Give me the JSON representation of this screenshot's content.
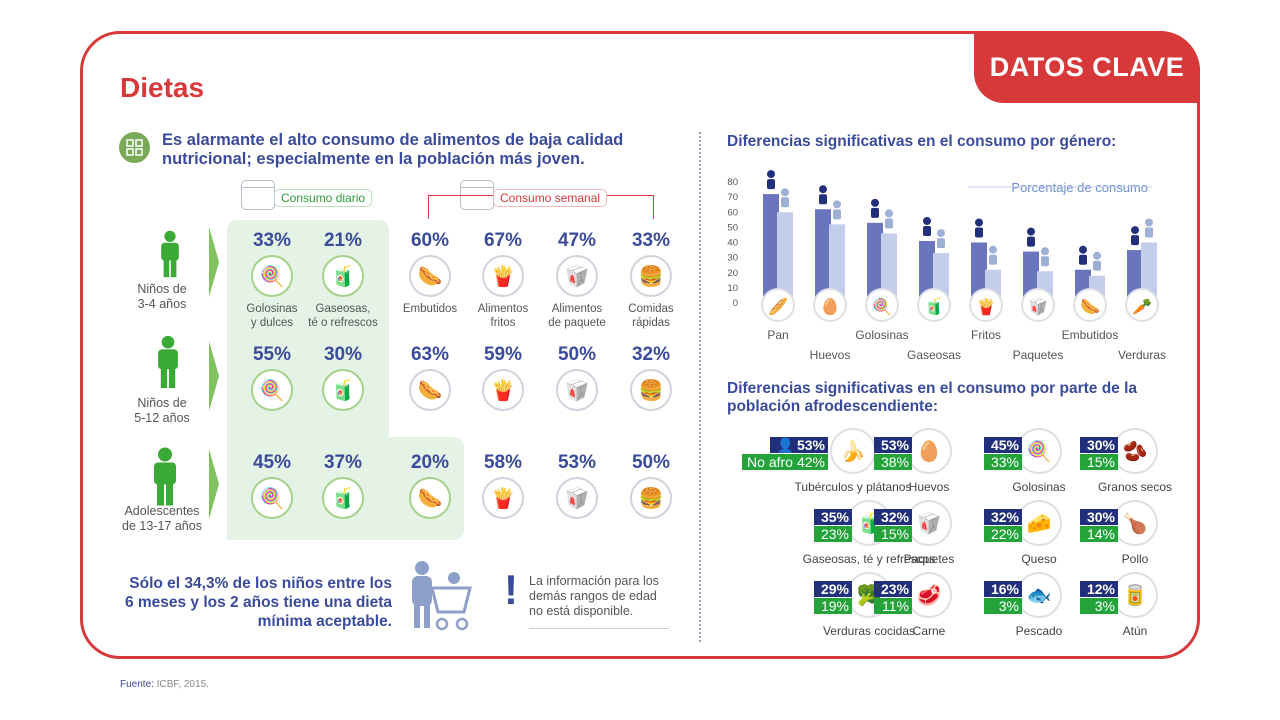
{
  "header": {
    "title": "Dietas",
    "tab": "DATOS CLAVE"
  },
  "intro": "Es alarmante el alto consumo de alimentos de baja calidad nutricional; especialmente en la población más joven.",
  "freq": {
    "daily": "Consumo diario",
    "weekly": "Consumo semanal"
  },
  "groups": [
    {
      "label": "Niños de\n3-4 años",
      "values": [
        "33%",
        "21%",
        "60%",
        "67%",
        "47%",
        "33%"
      ]
    },
    {
      "label": "Niños de\n5-12 años",
      "values": [
        "55%",
        "30%",
        "63%",
        "59%",
        "50%",
        "32%"
      ]
    },
    {
      "label": "Adolescentes\nde 13-17 años",
      "values": [
        "45%",
        "37%",
        "20%",
        "58%",
        "53%",
        "50%"
      ]
    }
  ],
  "foods": [
    {
      "label": "Golosinas\ny dulces",
      "icon": "lollipop-icon",
      "glyph": "🍭"
    },
    {
      "label": "Gaseosas,\nté o refrescos",
      "icon": "bottle-icon",
      "glyph": "🧃"
    },
    {
      "label": "Embutidos",
      "icon": "sausage-icon",
      "glyph": "🌭"
    },
    {
      "label": "Alimentos\nfritos",
      "icon": "fries-icon",
      "glyph": "🍟"
    },
    {
      "label": "Alimentos\nde paquete",
      "icon": "package-icon",
      "glyph": "🥡"
    },
    {
      "label": "Comidas\nrápidas",
      "icon": "burger-icon",
      "glyph": "🍔"
    }
  ],
  "summary": "Sólo el 34,3% de los niños entre los 6 meses y los 2 años tiene una dieta mínima aceptable.",
  "note": "La información para los demás rangos de edad no está disponible.",
  "gender": {
    "title": "Diferencias significativas en el consumo por género:",
    "legend": "Porcentaje de consumo"
  },
  "chart_data": {
    "type": "bar",
    "title": "Diferencias significativas en el consumo por género:",
    "ylabel": "Porcentaje de consumo",
    "ylim": [
      0,
      80
    ],
    "yticks": [
      "0",
      "10",
      "20",
      "30",
      "40",
      "50",
      "60",
      "70",
      "80"
    ],
    "categories": [
      "Pan",
      "Huevos",
      "Golosinas",
      "Gaseosas",
      "Fritos",
      "Paquetes",
      "Embutidos",
      "Verduras"
    ],
    "icons": [
      "🥖",
      "🥚",
      "🍭",
      "🧃",
      "🍟",
      "🥡",
      "🌭",
      "🥕"
    ],
    "series": [
      {
        "values": [
          72,
          62,
          53,
          41,
          40,
          34,
          22,
          35
        ],
        "color": "#6b75be"
      },
      {
        "values": [
          60,
          52,
          46,
          33,
          22,
          21,
          18,
          40
        ],
        "color": "#c4ceec"
      }
    ],
    "grid": false,
    "legend": "top-right"
  },
  "afro": {
    "title": "Diferencias significativas en el consumo por parte de la población afrodescendiente:",
    "legend_afro_icon": "person-icon",
    "legend_noafro": "No afro",
    "items": [
      {
        "name": "Tubérculos y plátanos",
        "afro": "53%",
        "noafro": "42%",
        "glyph": "🍌"
      },
      {
        "name": "Huevos",
        "afro": "53%",
        "noafro": "38%",
        "glyph": "🥚"
      },
      {
        "name": "Golosinas",
        "afro": "45%",
        "noafro": "33%",
        "glyph": "🍭"
      },
      {
        "name": "Granos secos",
        "afro": "30%",
        "noafro": "15%",
        "glyph": "🫘"
      },
      {
        "name": "Gaseosas, té y refrescos",
        "afro": "35%",
        "noafro": "23%",
        "glyph": "🧃"
      },
      {
        "name": "Paquetes",
        "afro": "32%",
        "noafro": "15%",
        "glyph": "🥡"
      },
      {
        "name": "Queso",
        "afro": "32%",
        "noafro": "22%",
        "glyph": "🧀"
      },
      {
        "name": "Pollo",
        "afro": "30%",
        "noafro": "14%",
        "glyph": "🍗"
      },
      {
        "name": "Verduras cocidas",
        "afro": "29%",
        "noafro": "19%",
        "glyph": "🥦"
      },
      {
        "name": "Carne",
        "afro": "23%",
        "noafro": "11%",
        "glyph": "🥩"
      },
      {
        "name": "Pescado",
        "afro": "16%",
        "noafro": "3%",
        "glyph": "🐟"
      },
      {
        "name": "Atún",
        "afro": "12%",
        "noafro": "3%",
        "glyph": "🥫"
      }
    ]
  },
  "source": {
    "label": "Fuente:",
    "text": " ICBF, 2015."
  },
  "colors": {
    "accent": "#d7393a",
    "navy": "#3a4b9b",
    "green": "#24a33a",
    "lightgreen": "#e4f3e6"
  }
}
